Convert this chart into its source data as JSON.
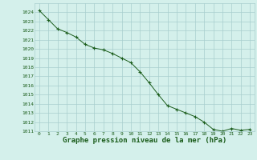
{
  "x": [
    0,
    1,
    2,
    3,
    4,
    5,
    6,
    7,
    8,
    9,
    10,
    11,
    12,
    13,
    14,
    15,
    16,
    17,
    18,
    19,
    20,
    21,
    22,
    23
  ],
  "y": [
    1024.2,
    1023.2,
    1022.2,
    1021.8,
    1021.3,
    1020.5,
    1020.1,
    1019.9,
    1019.5,
    1019.0,
    1018.5,
    1017.5,
    1016.3,
    1015.0,
    1013.8,
    1013.4,
    1013.0,
    1012.6,
    1012.0,
    1011.2,
    1011.0,
    1011.3,
    1011.1,
    1011.2
  ],
  "ylim": [
    1011,
    1025
  ],
  "xlim": [
    -0.5,
    23.5
  ],
  "yticks": [
    1011,
    1012,
    1013,
    1014,
    1015,
    1016,
    1017,
    1018,
    1019,
    1020,
    1021,
    1022,
    1023,
    1024
  ],
  "xticks": [
    0,
    1,
    2,
    3,
    4,
    5,
    6,
    7,
    8,
    9,
    10,
    11,
    12,
    13,
    14,
    15,
    16,
    17,
    18,
    19,
    20,
    21,
    22,
    23
  ],
  "xlabel": "Graphe pression niveau de la mer (hPa)",
  "line_color": "#1a5c1a",
  "marker": "+",
  "marker_color": "#1a5c1a",
  "bg_color": "#d4f0eb",
  "grid_color": "#a8cece",
  "tick_fontsize": 4.5,
  "xlabel_fontsize": 6.5,
  "xlabel_fontweight": "bold"
}
